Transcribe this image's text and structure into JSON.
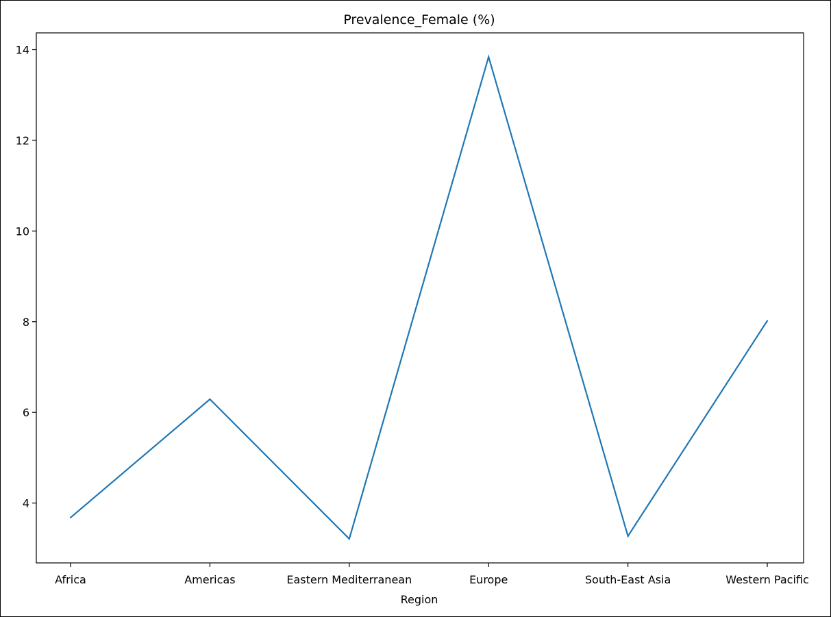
{
  "chart_data": {
    "type": "line",
    "title": "Prevalence_Female (%)",
    "xlabel": "Region",
    "ylabel": "",
    "categories": [
      "Africa",
      "Americas",
      "Eastern Mediterranean",
      "Europe",
      "South-East Asia",
      "Western Pacific"
    ],
    "series": [
      {
        "values": [
          3.68,
          6.29,
          3.21,
          13.84,
          3.27,
          8.02
        ]
      }
    ],
    "ylim": [
      2.68,
      14.37
    ],
    "yticks": [
      4,
      6,
      8,
      10,
      12,
      14
    ],
    "grid": false,
    "line_color": "#1f77b4"
  }
}
